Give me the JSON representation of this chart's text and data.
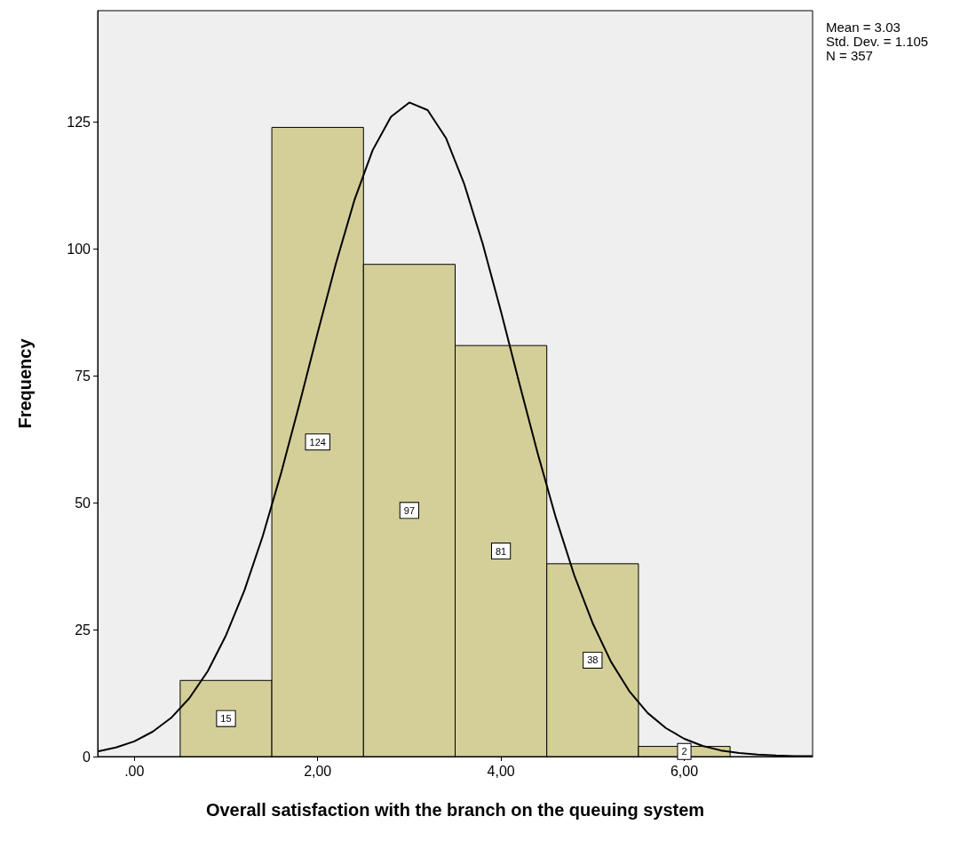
{
  "chart_data": {
    "type": "histogram",
    "xlabel": "Overall satisfaction with the branch on the queuing system",
    "ylabel": "Frequency",
    "bins": [
      0.5,
      1.5,
      2.5,
      3.5,
      4.5,
      5.5,
      6.5
    ],
    "series": [
      {
        "color": "#d4cf98",
        "values": [
          15,
          124,
          97,
          81,
          38,
          2
        ],
        "value_labels": [
          "15",
          "124",
          "97",
          "81",
          "38",
          "2"
        ]
      },
      {
        "type": "line",
        "color": "#000000",
        "x": [
          -0.4,
          -0.2,
          0,
          0.2,
          0.4,
          0.6,
          0.8,
          1.0,
          1.2,
          1.4,
          1.6,
          1.8,
          2.0,
          2.2,
          2.4,
          2.6,
          2.8,
          3.0,
          3.2,
          3.4,
          3.6,
          3.8,
          4.0,
          4.2,
          4.4,
          4.6,
          4.8,
          5.0,
          5.2,
          5.4,
          5.6,
          5.8,
          6.0,
          6.2,
          6.4,
          6.6,
          6.8,
          7.0,
          7.2,
          7.4
        ],
        "values": [
          1.0,
          1.8,
          3.0,
          4.9,
          7.6,
          11.5,
          16.8,
          23.9,
          32.7,
          43.4,
          55.8,
          69.4,
          83.5,
          97.2,
          109.6,
          119.5,
          126.1,
          128.9,
          127.4,
          121.9,
          112.8,
          101.1,
          87.7,
          73.6,
          59.8,
          47.0,
          35.7,
          26.3,
          18.7,
          12.9,
          8.6,
          5.6,
          3.5,
          2.1,
          1.2,
          0.7,
          0.4,
          0.2,
          0.1,
          0.1
        ]
      }
    ],
    "marker": "none",
    "line_style": "solid",
    "xlim": [
      -0.4,
      7.4
    ],
    "xticks": [
      {
        "value": 0,
        "label": ".00"
      },
      {
        "value": 2,
        "label": "2,00"
      },
      {
        "value": 4,
        "label": "4,00"
      },
      {
        "value": 6,
        "label": "6,00"
      }
    ],
    "ylim": [
      0,
      147
    ],
    "yticks": [
      0,
      25,
      50,
      75,
      100,
      125
    ],
    "annotations": [
      "Mean = 3.03",
      "Std. Dev. = 1.105",
      "N = 357"
    ]
  }
}
